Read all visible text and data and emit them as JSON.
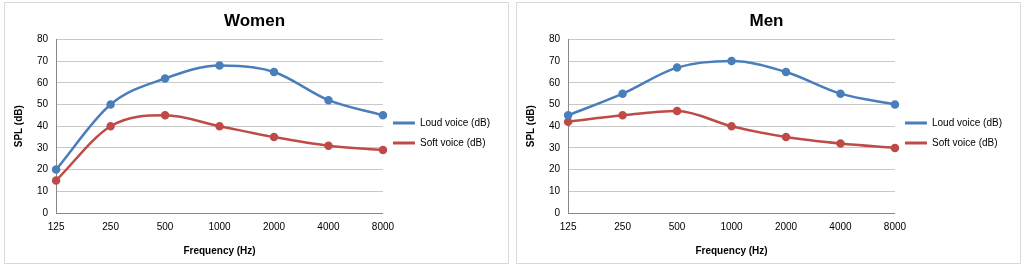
{
  "chart_data": [
    {
      "type": "line",
      "title": "Women",
      "xlabel": "Frequency (Hz)",
      "ylabel": "SPL (dB)",
      "categories": [
        "125",
        "250",
        "500",
        "1000",
        "2000",
        "4000",
        "8000"
      ],
      "series": [
        {
          "name": "Loud voice (dB)",
          "color": "#4a7ebb",
          "values": [
            20,
            50,
            62,
            68,
            65,
            52,
            45
          ]
        },
        {
          "name": "Soft voice (dB)",
          "color": "#be4b48",
          "values": [
            15,
            40,
            45,
            40,
            35,
            31,
            29
          ]
        }
      ],
      "ylim": [
        0,
        80
      ],
      "yticks": [
        0,
        10,
        20,
        30,
        40,
        50,
        60,
        70,
        80
      ],
      "grid": "y",
      "legend": "right",
      "marker": "circle"
    },
    {
      "type": "line",
      "title": "Men",
      "xlabel": "Frequency (Hz)",
      "ylabel": "SPL (dB)",
      "categories": [
        "125",
        "250",
        "500",
        "1000",
        "2000",
        "4000",
        "8000"
      ],
      "series": [
        {
          "name": "Loud voice (dB)",
          "color": "#4a7ebb",
          "values": [
            45,
            55,
            67,
            70,
            65,
            55,
            50
          ]
        },
        {
          "name": "Soft voice (dB)",
          "color": "#be4b48",
          "values": [
            42,
            45,
            47,
            40,
            35,
            32,
            30
          ]
        }
      ],
      "ylim": [
        0,
        80
      ],
      "yticks": [
        0,
        10,
        20,
        30,
        40,
        50,
        60,
        70,
        80
      ],
      "grid": "y",
      "legend": "right",
      "marker": "circle"
    }
  ]
}
